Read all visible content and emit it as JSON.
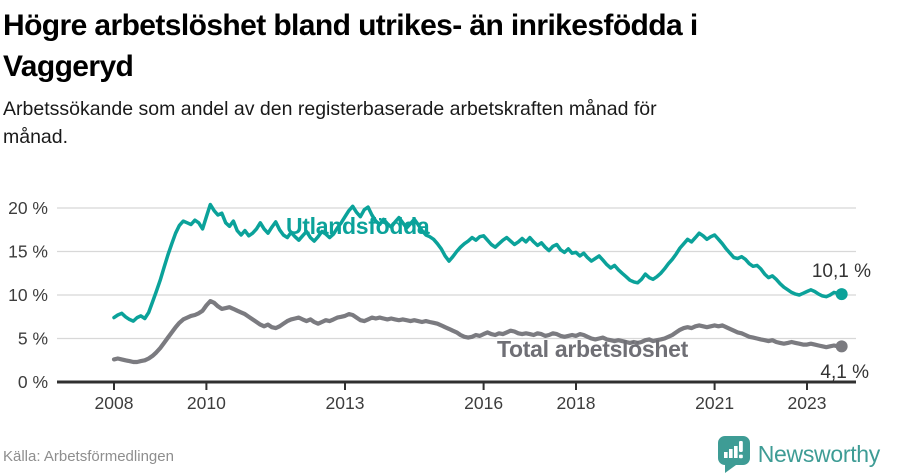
{
  "header": {
    "title_lines": [
      "Högre arbetslöshet bland utrikes- än inrikesfödda i",
      "Vaggeryd"
    ],
    "title": "Högre arbetslöshet bland utrikes- än inrikesfödda i Vaggeryd",
    "subtitle_lines": [
      "Arbetssökande som andel av den registerbaserade arbetskraften månad för",
      "månad."
    ],
    "subtitle": "Arbetssökande som andel av den registerbaserade arbetskraften månad för månad."
  },
  "footer": {
    "source": "Källa: Arbetsförmedlingen",
    "brand": "Newsworthy"
  },
  "colors": {
    "series_teal": "#0ba29a",
    "series_gray": "#7b7b80",
    "label_gray": "#6f6f75",
    "grid": "#d8d8d8",
    "axis": "#303030",
    "axis_text": "#3d3d3d",
    "end_label_text": "#333333",
    "brand_teal": "#3e9c95"
  },
  "chart_data": {
    "type": "line",
    "title": "",
    "xlabel": "",
    "ylabel": "",
    "x_unit": "months",
    "x_start_year": 2008,
    "x_end": "2023-10",
    "ylim": [
      0,
      21
    ],
    "grid": "horizontal",
    "x_tick_years": [
      2008,
      2010,
      2013,
      2016,
      2018,
      2021,
      2023
    ],
    "y_ticks": [
      {
        "value": 0,
        "label": "0 %"
      },
      {
        "value": 5,
        "label": "5 %"
      },
      {
        "value": 10,
        "label": "10 %"
      },
      {
        "value": 15,
        "label": "15 %"
      },
      {
        "value": 20,
        "label": "20 %"
      }
    ],
    "series": [
      {
        "name": "Utlandsfödda",
        "color": "#0ba29a",
        "end_label": "10,1 %",
        "end_value": 10.1,
        "values": [
          7.4,
          7.7,
          7.9,
          7.5,
          7.2,
          7.0,
          7.4,
          7.6,
          7.3,
          8.0,
          9.2,
          10.4,
          11.7,
          13.2,
          14.6,
          15.9,
          17.1,
          18.0,
          18.5,
          18.3,
          18.1,
          18.6,
          18.3,
          17.6,
          19.0,
          20.4,
          19.7,
          19.2,
          19.4,
          18.3,
          17.9,
          18.5,
          17.4,
          16.9,
          17.4,
          16.8,
          17.1,
          17.6,
          18.3,
          17.6,
          17.1,
          17.8,
          18.4,
          17.5,
          16.9,
          16.6,
          17.2,
          16.7,
          16.3,
          16.8,
          17.3,
          16.6,
          16.2,
          16.7,
          17.3,
          17.0,
          16.6,
          17.0,
          17.7,
          18.3,
          19.0,
          19.7,
          20.2,
          19.5,
          19.0,
          19.8,
          20.1,
          19.2,
          18.5,
          18.1,
          18.7,
          18.2,
          17.8,
          18.4,
          18.9,
          18.3,
          17.7,
          18.2,
          18.7,
          18.1,
          17.4,
          16.9,
          16.7,
          16.4,
          15.9,
          15.3,
          14.5,
          13.9,
          14.4,
          15.0,
          15.5,
          15.9,
          16.2,
          16.6,
          16.3,
          16.7,
          16.8,
          16.3,
          15.8,
          15.5,
          15.9,
          16.3,
          16.6,
          16.2,
          15.8,
          16.1,
          16.5,
          16.1,
          16.6,
          16.1,
          15.7,
          16.0,
          15.5,
          15.1,
          15.6,
          15.8,
          15.2,
          14.9,
          15.3,
          14.8,
          14.9,
          14.5,
          14.8,
          14.3,
          13.9,
          14.2,
          14.5,
          14.0,
          13.5,
          13.1,
          13.4,
          12.9,
          12.5,
          12.1,
          11.7,
          11.5,
          11.4,
          11.8,
          12.4,
          12.0,
          11.8,
          12.1,
          12.5,
          13.0,
          13.6,
          14.1,
          14.7,
          15.4,
          15.9,
          16.4,
          16.1,
          16.6,
          17.1,
          16.8,
          16.4,
          16.7,
          16.9,
          16.4,
          15.9,
          15.3,
          14.8,
          14.3,
          14.2,
          14.4,
          14.1,
          13.6,
          13.3,
          13.4,
          13.0,
          12.4,
          12.0,
          12.2,
          11.8,
          11.3,
          10.9,
          10.6,
          10.3,
          10.1,
          10.0,
          10.2,
          10.4,
          10.6,
          10.4,
          10.1,
          9.9,
          9.8,
          10.0,
          10.3,
          10.2,
          10.1
        ]
      },
      {
        "name": "Total arbetslöshet",
        "color": "#7b7b80",
        "end_label": "4,1 %",
        "end_value": 4.1,
        "values": [
          2.6,
          2.7,
          2.6,
          2.5,
          2.4,
          2.3,
          2.3,
          2.4,
          2.5,
          2.7,
          3.0,
          3.4,
          3.9,
          4.5,
          5.1,
          5.7,
          6.3,
          6.8,
          7.2,
          7.4,
          7.6,
          7.7,
          7.9,
          8.2,
          8.8,
          9.3,
          9.1,
          8.7,
          8.4,
          8.5,
          8.6,
          8.4,
          8.2,
          8.0,
          7.8,
          7.5,
          7.2,
          6.9,
          6.6,
          6.4,
          6.6,
          6.3,
          6.2,
          6.4,
          6.7,
          7.0,
          7.2,
          7.3,
          7.4,
          7.2,
          7.0,
          7.2,
          6.9,
          6.7,
          6.9,
          7.1,
          7.0,
          7.2,
          7.4,
          7.5,
          7.6,
          7.8,
          7.7,
          7.4,
          7.1,
          7.0,
          7.2,
          7.4,
          7.3,
          7.4,
          7.3,
          7.2,
          7.3,
          7.2,
          7.1,
          7.2,
          7.1,
          7.0,
          7.1,
          7.0,
          6.9,
          7.0,
          6.9,
          6.8,
          6.7,
          6.5,
          6.3,
          6.1,
          5.9,
          5.7,
          5.4,
          5.2,
          5.1,
          5.2,
          5.4,
          5.3,
          5.5,
          5.7,
          5.5,
          5.4,
          5.6,
          5.5,
          5.7,
          5.9,
          5.8,
          5.6,
          5.5,
          5.6,
          5.5,
          5.4,
          5.6,
          5.5,
          5.3,
          5.4,
          5.6,
          5.5,
          5.3,
          5.2,
          5.3,
          5.4,
          5.3,
          5.5,
          5.4,
          5.2,
          5.0,
          4.9,
          5.0,
          5.1,
          4.9,
          4.8,
          4.7,
          4.8,
          4.7,
          4.6,
          4.5,
          4.6,
          4.5,
          4.6,
          4.8,
          4.9,
          4.7,
          4.8,
          4.9,
          5.0,
          5.2,
          5.4,
          5.7,
          6.0,
          6.2,
          6.3,
          6.2,
          6.4,
          6.5,
          6.4,
          6.3,
          6.4,
          6.5,
          6.4,
          6.5,
          6.3,
          6.1,
          5.9,
          5.7,
          5.6,
          5.4,
          5.2,
          5.1,
          5.0,
          4.9,
          4.8,
          4.7,
          4.8,
          4.6,
          4.5,
          4.4,
          4.5,
          4.6,
          4.5,
          4.4,
          4.3,
          4.3,
          4.4,
          4.3,
          4.2,
          4.1,
          4.0,
          4.1,
          4.2,
          4.1,
          4.1
        ]
      }
    ],
    "legend_position": "inline-labels"
  }
}
